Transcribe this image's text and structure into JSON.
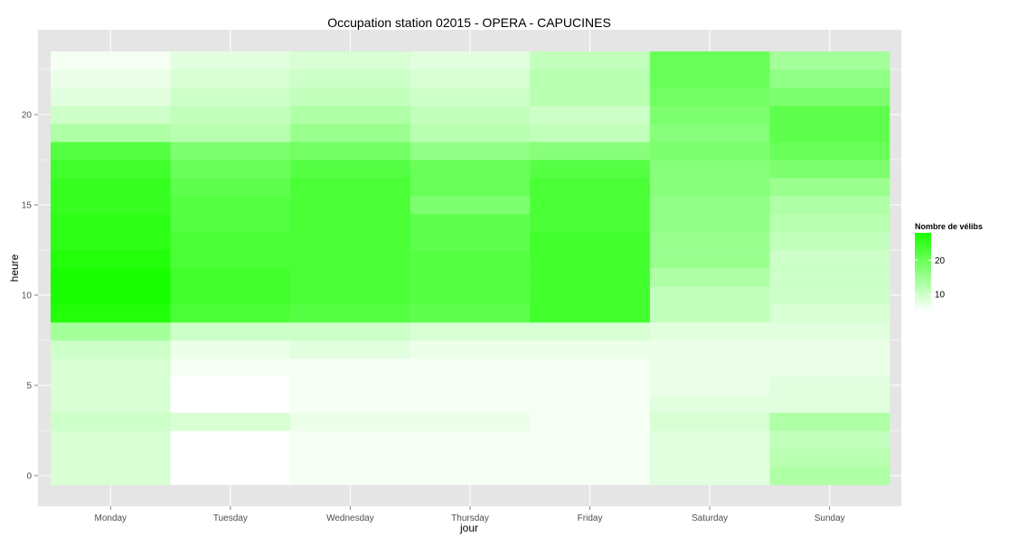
{
  "chart_data": {
    "type": "heatmap",
    "title": "Occupation station 02015 - OPERA - CAPUCINES",
    "xlabel": "jour",
    "ylabel": "heure",
    "categories": [
      "Monday",
      "Tuesday",
      "Wednesday",
      "Thursday",
      "Friday",
      "Saturday",
      "Sunday"
    ],
    "hours": [
      0,
      1,
      2,
      3,
      4,
      5,
      6,
      7,
      8,
      9,
      10,
      11,
      12,
      13,
      14,
      15,
      16,
      17,
      18,
      19,
      20,
      21,
      22,
      23
    ],
    "y_ticks": [
      0,
      5,
      10,
      15,
      20
    ],
    "ylim": [
      -0.5,
      23.5
    ],
    "grid": true,
    "legend": {
      "title": "Nombre de vélibs",
      "position": "right",
      "ticks": [
        10,
        20
      ],
      "range": [
        5,
        28
      ],
      "color_low": "#ffffff",
      "color_high": "#19ff00"
    },
    "values": [
      [
        9,
        9,
        9,
        10,
        9,
        9,
        9,
        10,
        14,
        27,
        28,
        28,
        27,
        26,
        26,
        25,
        25,
        24,
        22,
        13,
        10,
        8,
        7,
        6
      ],
      [
        5,
        5,
        5,
        9,
        5,
        5,
        6,
        7,
        10,
        23,
        24,
        24,
        23,
        23,
        22,
        22,
        21,
        20,
        18,
        12,
        11,
        10,
        9,
        8
      ],
      [
        6,
        6,
        6,
        7,
        6,
        6,
        6,
        8,
        10,
        22,
        23,
        23,
        23,
        23,
        23,
        23,
        23,
        22,
        19,
        15,
        13,
        11,
        10,
        9
      ],
      [
        6,
        6,
        6,
        7,
        6,
        6,
        6,
        7,
        9,
        21,
        22,
        22,
        22,
        21,
        21,
        18,
        20,
        20,
        16,
        12,
        11,
        10,
        9,
        8
      ],
      [
        6,
        6,
        6,
        6,
        6,
        6,
        6,
        7,
        9,
        24,
        24,
        24,
        24,
        24,
        23,
        23,
        23,
        22,
        17,
        11,
        10,
        12,
        12,
        11
      ],
      [
        8,
        8,
        8,
        9,
        8,
        7,
        7,
        7,
        8,
        11,
        11,
        13,
        15,
        15,
        16,
        16,
        17,
        17,
        18,
        17,
        18,
        19,
        20,
        20
      ],
      [
        13,
        12,
        11,
        13,
        8,
        8,
        7,
        7,
        8,
        9,
        10,
        10,
        10,
        11,
        12,
        13,
        15,
        18,
        20,
        21,
        21,
        18,
        16,
        14
      ]
    ]
  }
}
